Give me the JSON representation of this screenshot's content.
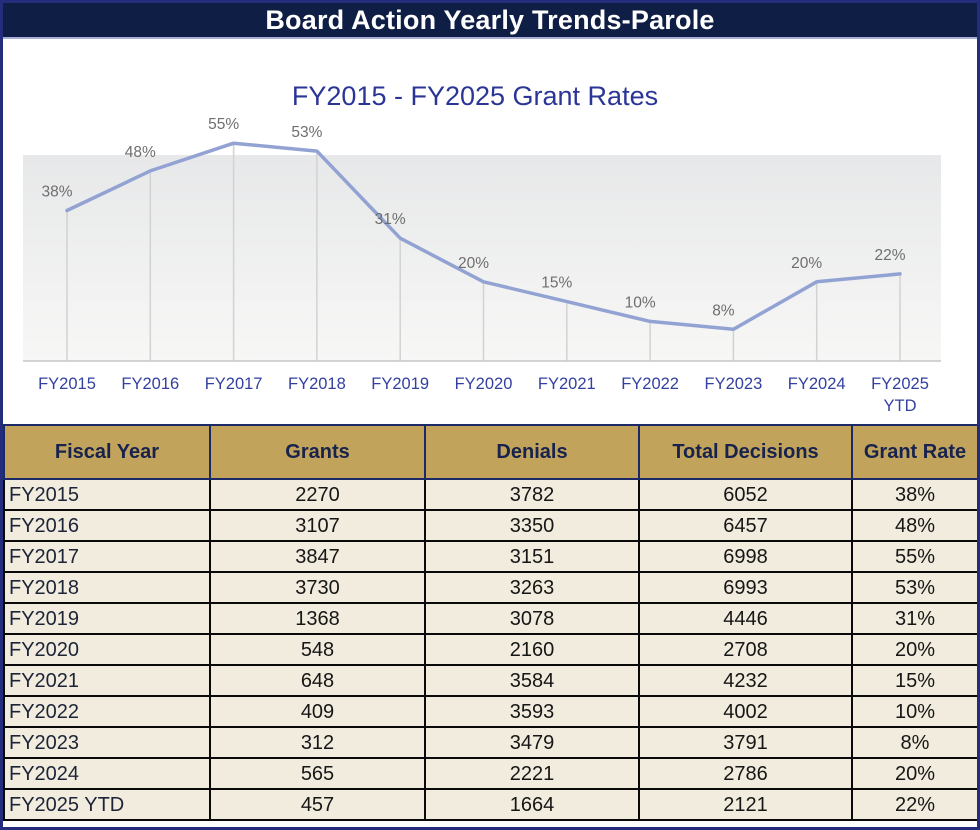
{
  "page": {
    "title": "Board Action Yearly Trends-Parole"
  },
  "chart": {
    "title": "FY2015 - FY2025 Grant Rates"
  },
  "chart_data": {
    "type": "line",
    "title": "FY2015 - FY2025 Grant Rates",
    "categories": [
      "FY2015",
      "FY2016",
      "FY2017",
      "FY2018",
      "FY2019",
      "FY2020",
      "FY2021",
      "FY2022",
      "FY2023",
      "FY2024",
      "FY2025 YTD"
    ],
    "values": [
      38,
      48,
      55,
      53,
      31,
      20,
      15,
      10,
      8,
      20,
      22
    ],
    "unit": "%",
    "data_labels": [
      "38%",
      "48%",
      "55%",
      "53%",
      "31%",
      "20%",
      "15%",
      "10%",
      "8%",
      "20%",
      "22%"
    ],
    "ylim": [
      0,
      60
    ],
    "grid": "vertical droplines from each point to baseline",
    "legend": "none",
    "line_color": "#92A3D3",
    "data_label_color": "#6E6E6E",
    "axis_label_color": "#3340A0",
    "plot_fill_top": "#E7E8E9",
    "plot_fill_bottom": "#F7F7F6"
  },
  "table": {
    "headers": [
      "Fiscal Year",
      "Grants",
      "Denials",
      "Total Decisions",
      "Grant Rate"
    ],
    "rows": [
      [
        "FY2015",
        "2270",
        "3782",
        "6052",
        "38%"
      ],
      [
        "FY2016",
        "3107",
        "3350",
        "6457",
        "48%"
      ],
      [
        "FY2017",
        "3847",
        "3151",
        "6998",
        "55%"
      ],
      [
        "FY2018",
        "3730",
        "3263",
        "6993",
        "53%"
      ],
      [
        "FY2019",
        "1368",
        "3078",
        "4446",
        "31%"
      ],
      [
        "FY2020",
        "548",
        "2160",
        "2708",
        "20%"
      ],
      [
        "FY2021",
        "648",
        "3584",
        "4232",
        "15%"
      ],
      [
        "FY2022",
        "409",
        "3593",
        "4002",
        "10%"
      ],
      [
        "FY2023",
        "312",
        "3479",
        "3791",
        "8%"
      ],
      [
        "FY2024",
        "565",
        "2221",
        "2786",
        "20%"
      ],
      [
        "FY2025 YTD",
        "457",
        "1664",
        "2121",
        "22%"
      ]
    ],
    "header_bg": "#C1A35C",
    "header_text_color": "#17224D",
    "row_bg": "#F1ECDE",
    "title_bar_bg": "#0F1E44",
    "page_border": "#232D7B"
  }
}
